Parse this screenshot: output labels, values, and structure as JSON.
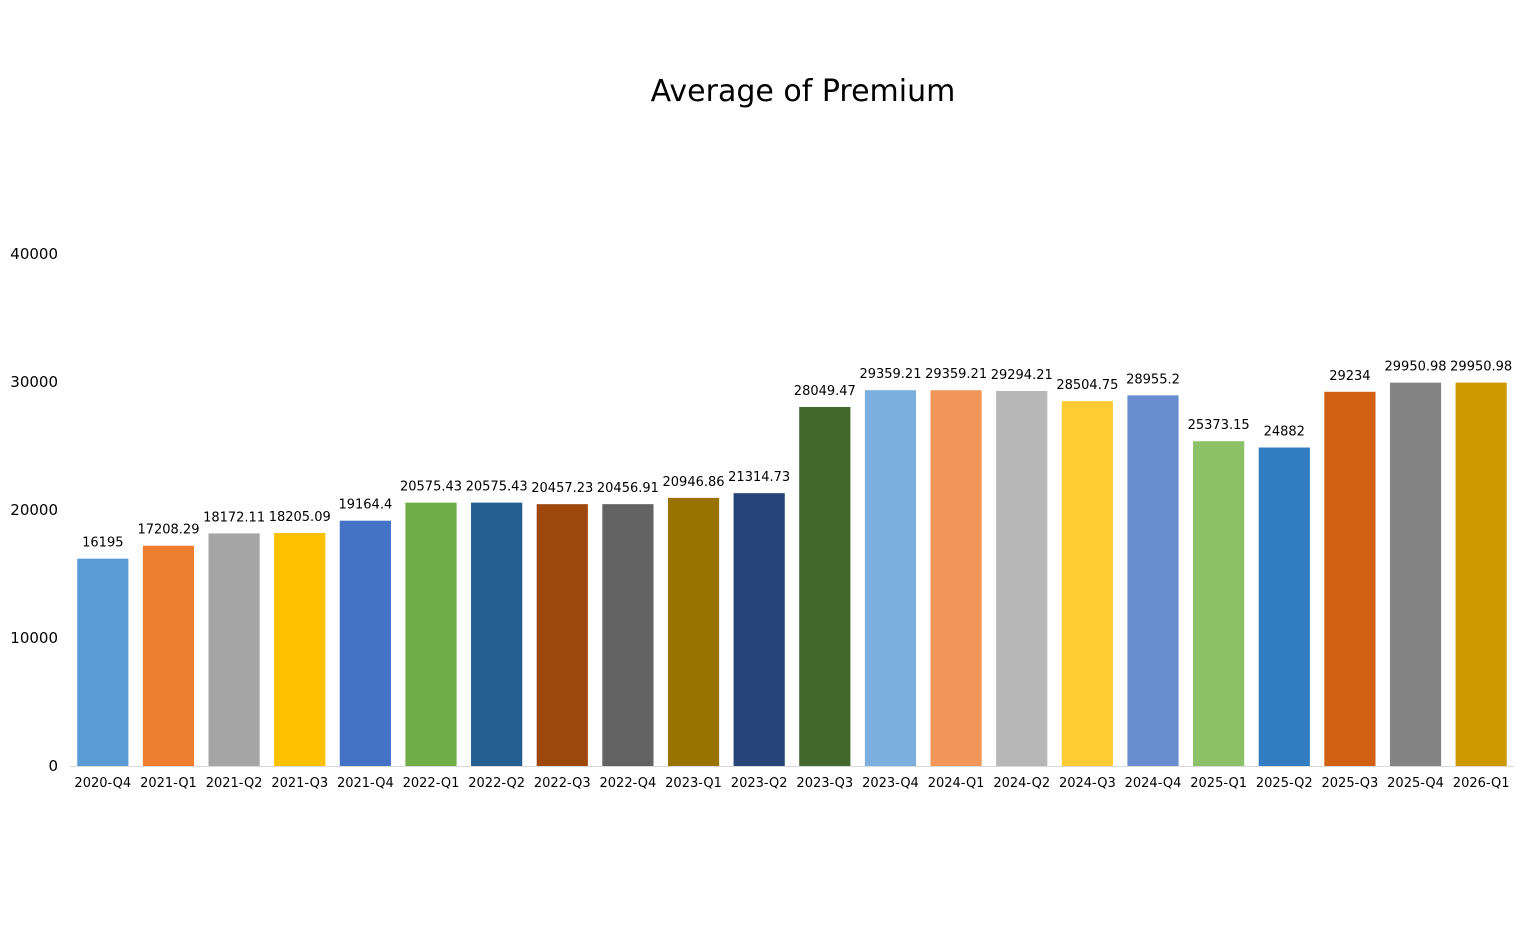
{
  "chart_data": {
    "type": "bar",
    "title": "Average of Premium",
    "xlabel": "",
    "ylabel": "",
    "ylim": [
      0,
      40000
    ],
    "yticks": [
      0,
      10000,
      20000,
      30000,
      40000
    ],
    "grid": false,
    "legend": "none",
    "categories": [
      "2020-Q4",
      "2021-Q1",
      "2021-Q2",
      "2021-Q3",
      "2021-Q4",
      "2022-Q1",
      "2022-Q2",
      "2022-Q3",
      "2022-Q4",
      "2023-Q1",
      "2023-Q2",
      "2023-Q3",
      "2023-Q4",
      "2024-Q1",
      "2024-Q2",
      "2024-Q3",
      "2024-Q4",
      "2025-Q1",
      "2025-Q2",
      "2025-Q3",
      "2025-Q4",
      "2026-Q1"
    ],
    "values": [
      16195,
      17208.29,
      18172.11,
      18205.09,
      19164.4,
      20575.43,
      20575.43,
      20457.23,
      20456.91,
      20946.86,
      21314.73,
      28049.47,
      29359.21,
      29359.21,
      29294.21,
      28504.75,
      28955.2,
      25373.15,
      24882,
      29234,
      29950.98,
      29950.98
    ],
    "colors": [
      "#5b9bd5",
      "#ed7d31",
      "#a5a5a5",
      "#ffc000",
      "#4472c4",
      "#70ad47",
      "#255e91",
      "#9e480e",
      "#636363",
      "#997300",
      "#264478",
      "#43682b",
      "#7cafdd",
      "#f1975a",
      "#b7b7b7",
      "#ffcd33",
      "#698ed0",
      "#8cc168",
      "#327dc2",
      "#d26012",
      "#848484",
      "#cc9a00"
    ]
  }
}
